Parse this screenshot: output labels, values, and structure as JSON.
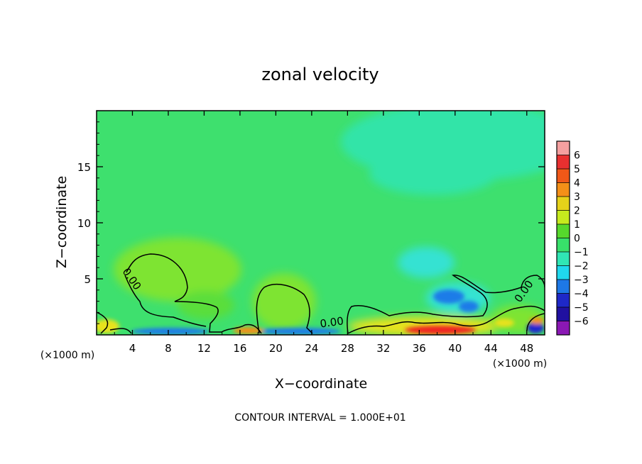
{
  "chart_data": {
    "type": "heatmap",
    "title": "zonal velocity",
    "xlabel": "X−coordinate",
    "ylabel": "Z−coordinate",
    "x_unit_left": "(×1000 m)",
    "x_unit_right": "(×1000 m)",
    "footer": "CONTOUR INTERVAL = 1.000E+01",
    "xlim": [
      0,
      50
    ],
    "ylim": [
      0,
      20
    ],
    "x_ticks": [
      4,
      8,
      12,
      16,
      20,
      24,
      28,
      32,
      36,
      40,
      44,
      48
    ],
    "x_tick_labels": [
      "4",
      "8",
      "12",
      "16",
      "20",
      "24",
      "28",
      "32",
      "36",
      "40",
      "44",
      "48"
    ],
    "y_ticks": [
      5,
      10,
      15
    ],
    "y_tick_labels": [
      "5",
      "10",
      "15"
    ],
    "contour_labels": [
      {
        "text": "0.00",
        "x": 3.6,
        "y": 4.8,
        "angle": 55
      },
      {
        "text": "0.00",
        "x": 26.3,
        "y": 0.8,
        "angle": -8
      },
      {
        "text": "0.00",
        "x": 48.0,
        "y": 3.7,
        "angle": -55
      }
    ],
    "colorbar": {
      "levels": [
        "6",
        "5",
        "4",
        "3",
        "2",
        "1",
        "0",
        "−1",
        "−2",
        "−3",
        "−4",
        "−5",
        "−6"
      ],
      "colors": [
        "#f4a0a0",
        "#e83030",
        "#f05818",
        "#f49018",
        "#e6d21a",
        "#c6ea1e",
        "#56d82c",
        "#38e06a",
        "#30e6b4",
        "#20d8ee",
        "#1e78e6",
        "#1e28c8",
        "#2010a0",
        "#8a18b4"
      ]
    },
    "field_colors": {
      "background": "#3ee06e",
      "upper_teal": "#30e4a8",
      "mid_green": "#5ade3a",
      "light_green": "#7ee430",
      "cyan": "#34e2d2",
      "blue": "#1e7ce8",
      "deep_blue": "#1e28d0",
      "red": "#f02020",
      "orange": "#f49018",
      "yellow": "#e8e21c"
    }
  }
}
